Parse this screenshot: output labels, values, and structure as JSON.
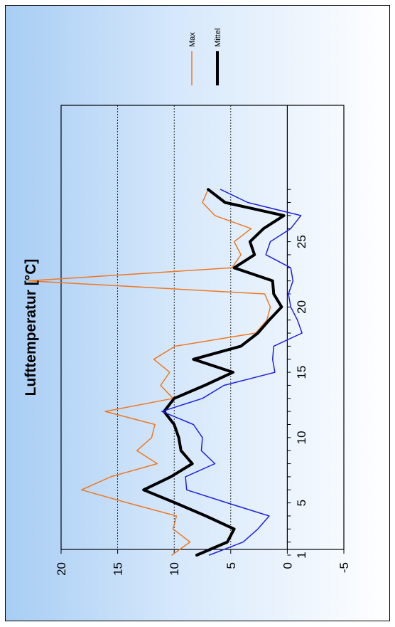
{
  "chart_data": {
    "type": "line",
    "title": "Lufttemperatur [°C]",
    "orientation": "rotated-90-counterclockwise",
    "xlabel": "",
    "ylabel": "",
    "x": [
      1,
      2,
      3,
      4,
      5,
      6,
      7,
      8,
      9,
      10,
      11,
      12,
      13,
      14,
      15,
      16,
      17,
      18,
      19,
      20,
      21,
      22,
      23,
      24,
      25,
      26,
      27,
      28,
      29
    ],
    "x_ticks": [
      "1",
      "5",
      "10",
      "15",
      "20",
      "25"
    ],
    "x_tick_values": [
      1,
      5,
      10,
      15,
      20,
      25
    ],
    "ylim": [
      -5,
      20
    ],
    "y_ticks": [
      "-5",
      "0",
      "5",
      "10",
      "15",
      "20"
    ],
    "y_tick_values": [
      -5,
      0,
      5,
      10,
      15,
      20
    ],
    "grid": "dashed horizontal lines at 5, 10, 15",
    "legend_position": "top-right",
    "series": [
      {
        "name": "Max",
        "color": "#f07820",
        "width": 1.5,
        "values": [
          10.2,
          8.6,
          10.1,
          9.8,
          14.1,
          18.2,
          15.6,
          11.5,
          13.3,
          12.0,
          11.7,
          16.1,
          10.1,
          11.2,
          10.4,
          11.8,
          9.9,
          2.8,
          1.8,
          1.5,
          2.0,
          22.9,
          4.9,
          4.1,
          4.7,
          3.2,
          6.4,
          7.5,
          7.0
        ],
        "note": "values reconstructed from the plotted line"
      },
      {
        "name": "Mittel",
        "color": "#000000",
        "width": 4,
        "values": [
          8.0,
          5.3,
          4.7,
          7.2,
          9.9,
          12.7,
          10.3,
          8.4,
          9.4,
          9.6,
          10.0,
          10.9,
          10.0,
          7.3,
          4.8,
          8.3,
          4.1,
          2.6,
          1.6,
          0.5,
          1.2,
          1.3,
          4.7,
          2.9,
          3.3,
          2.1,
          0.3,
          5.5,
          7.0
        ]
      },
      {
        "name": "",
        "color": "#2020e0",
        "width": 1.5,
        "values": [
          6.9,
          3.9,
          2.6,
          1.6,
          5.3,
          8.9,
          9.0,
          6.4,
          7.6,
          7.5,
          8.3,
          11.1,
          7.5,
          5.6,
          1.1,
          1.3,
          1.2,
          -1.3,
          -0.9,
          -0.3,
          -0.1,
          -0.5,
          -0.3,
          1.9,
          1.5,
          -0.3,
          -1.2,
          3.5,
          5.9
        ]
      }
    ]
  }
}
